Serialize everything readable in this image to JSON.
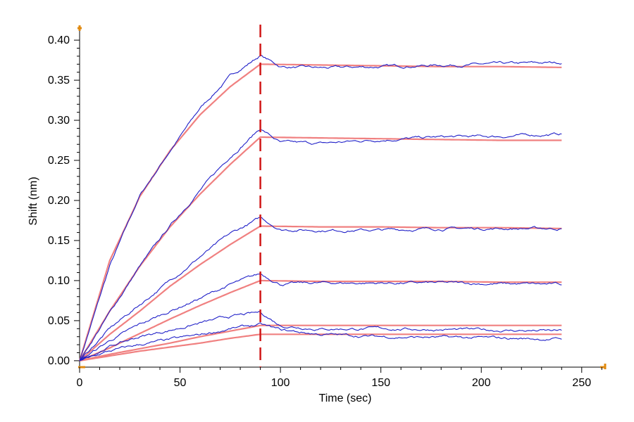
{
  "chart_data": {
    "type": "line",
    "title": "",
    "xlabel": "Time (sec)",
    "ylabel": "Shift (nm)",
    "xlim": [
      0,
      262
    ],
    "ylim": [
      -0.008,
      0.415
    ],
    "x_ticks": [
      0,
      50,
      100,
      150,
      200,
      250
    ],
    "x_tick_labels": [
      "0",
      "50",
      "100",
      "150",
      "200",
      "250"
    ],
    "y_ticks": [
      0.0,
      0.05,
      0.1,
      0.15,
      0.2,
      0.25,
      0.3,
      0.35,
      0.4
    ],
    "y_tick_labels": [
      "0.00",
      "0.05",
      "0.10",
      "0.15",
      "0.20",
      "0.25",
      "0.30",
      "0.35",
      "0.40"
    ],
    "grid": false,
    "legend": "none",
    "dissociation_start": 90,
    "colors": {
      "measured": "#2020c8",
      "fit": "#f08080",
      "marker": "#d01818",
      "axis_accent": "#e08a10"
    },
    "series": [
      {
        "role": "measured",
        "assoc_end": 0.381,
        "dissoc_end": 0.372,
        "x": [
          0,
          15,
          30,
          45,
          60,
          75,
          90,
          100,
          120,
          150,
          180,
          210,
          240
        ],
        "values": [
          0.0,
          0.118,
          0.206,
          0.262,
          0.315,
          0.355,
          0.381,
          0.367,
          0.365,
          0.367,
          0.369,
          0.37,
          0.372
        ]
      },
      {
        "role": "fit",
        "assoc_end": 0.37,
        "dissoc_end": 0.366,
        "x": [
          0,
          15,
          30,
          45,
          60,
          75,
          90,
          120,
          150,
          180,
          210,
          240
        ],
        "values": [
          0.0,
          0.125,
          0.205,
          0.262,
          0.307,
          0.342,
          0.37,
          0.369,
          0.368,
          0.367,
          0.367,
          0.366
        ]
      },
      {
        "role": "measured",
        "assoc_end": 0.29,
        "dissoc_end": 0.283,
        "x": [
          0,
          15,
          30,
          45,
          60,
          75,
          90,
          100,
          120,
          150,
          180,
          210,
          240
        ],
        "values": [
          0.0,
          0.06,
          0.118,
          0.168,
          0.213,
          0.255,
          0.29,
          0.272,
          0.271,
          0.276,
          0.279,
          0.28,
          0.283
        ]
      },
      {
        "role": "fit",
        "assoc_end": 0.279,
        "dissoc_end": 0.275,
        "x": [
          0,
          15,
          30,
          45,
          60,
          75,
          90,
          120,
          150,
          180,
          210,
          240
        ],
        "values": [
          0.0,
          0.062,
          0.118,
          0.167,
          0.208,
          0.245,
          0.279,
          0.278,
          0.277,
          0.276,
          0.275,
          0.275
        ]
      },
      {
        "role": "measured",
        "assoc_end": 0.178,
        "dissoc_end": 0.165,
        "x": [
          0,
          15,
          30,
          45,
          60,
          75,
          90,
          100,
          120,
          150,
          180,
          210,
          240
        ],
        "values": [
          0.0,
          0.04,
          0.07,
          0.1,
          0.13,
          0.158,
          0.178,
          0.164,
          0.163,
          0.163,
          0.165,
          0.165,
          0.165
        ]
      },
      {
        "role": "fit",
        "assoc_end": 0.168,
        "dissoc_end": 0.165,
        "x": [
          0,
          15,
          30,
          45,
          60,
          75,
          90,
          120,
          150,
          180,
          210,
          240
        ],
        "values": [
          0.0,
          0.033,
          0.062,
          0.093,
          0.12,
          0.145,
          0.168,
          0.167,
          0.167,
          0.166,
          0.166,
          0.165
        ]
      },
      {
        "role": "measured",
        "assoc_end": 0.108,
        "dissoc_end": 0.095,
        "x": [
          0,
          15,
          30,
          45,
          60,
          75,
          90,
          100,
          120,
          150,
          180,
          210,
          240
        ],
        "values": [
          0.0,
          0.025,
          0.045,
          0.062,
          0.078,
          0.095,
          0.108,
          0.096,
          0.097,
          0.097,
          0.097,
          0.096,
          0.095
        ]
      },
      {
        "role": "fit",
        "assoc_end": 0.1,
        "dissoc_end": 0.098,
        "x": [
          0,
          15,
          30,
          45,
          60,
          75,
          90,
          120,
          150,
          180,
          210,
          240
        ],
        "values": [
          0.0,
          0.016,
          0.034,
          0.052,
          0.069,
          0.085,
          0.1,
          0.099,
          0.099,
          0.099,
          0.098,
          0.098
        ]
      },
      {
        "role": "measured",
        "assoc_end": 0.06,
        "dissoc_end": 0.037,
        "x": [
          0,
          15,
          30,
          45,
          60,
          75,
          90,
          100,
          120,
          150,
          180,
          210,
          240
        ],
        "values": [
          0.0,
          0.018,
          0.03,
          0.038,
          0.047,
          0.055,
          0.06,
          0.044,
          0.04,
          0.04,
          0.039,
          0.038,
          0.037
        ]
      },
      {
        "role": "fit",
        "assoc_end": 0.044,
        "dissoc_end": 0.044,
        "x": [
          0,
          15,
          30,
          45,
          60,
          75,
          90,
          120,
          150,
          180,
          210,
          240
        ],
        "values": [
          0.0,
          0.008,
          0.015,
          0.022,
          0.03,
          0.037,
          0.044,
          0.044,
          0.044,
          0.044,
          0.044,
          0.044
        ]
      },
      {
        "role": "measured",
        "assoc_end": 0.045,
        "dissoc_end": 0.027,
        "x": [
          0,
          15,
          30,
          45,
          60,
          75,
          90,
          100,
          120,
          150,
          180,
          210,
          240
        ],
        "values": [
          0.0,
          0.012,
          0.02,
          0.026,
          0.032,
          0.04,
          0.045,
          0.038,
          0.033,
          0.03,
          0.029,
          0.028,
          0.027
        ]
      },
      {
        "role": "fit",
        "assoc_end": 0.033,
        "dissoc_end": 0.033,
        "x": [
          0,
          15,
          30,
          45,
          60,
          75,
          90,
          120,
          150,
          180,
          210,
          240
        ],
        "values": [
          0.0,
          0.006,
          0.012,
          0.017,
          0.022,
          0.028,
          0.033,
          0.033,
          0.033,
          0.033,
          0.033,
          0.033
        ]
      }
    ]
  }
}
